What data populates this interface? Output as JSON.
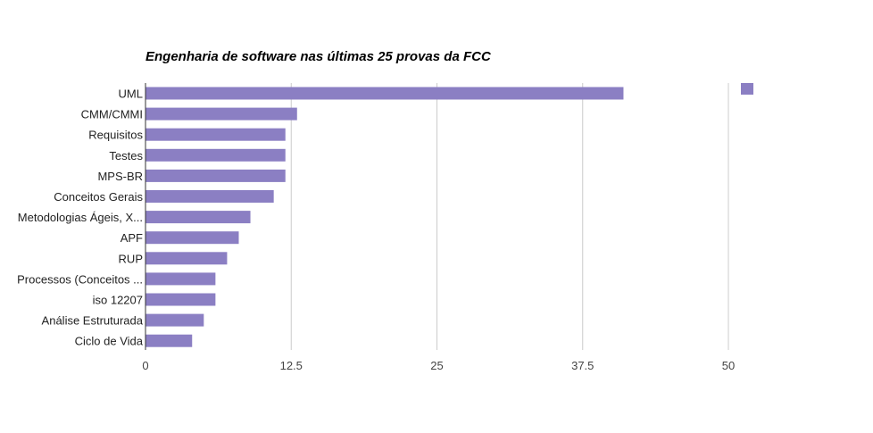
{
  "chart_data": {
    "type": "bar",
    "orientation": "horizontal",
    "title": "Engenharia de software nas últimas 25 provas da FCC",
    "categories": [
      "UML",
      "CMM/CMMI",
      "Requisitos",
      "Testes",
      "MPS-BR",
      "Conceitos Gerais",
      "Metodologias Ágeis, X...",
      "APF",
      "RUP",
      "Processos (Conceitos ...",
      "iso 12207",
      "Análise Estruturada",
      "Ciclo de Vida"
    ],
    "values": [
      41,
      13,
      12,
      12,
      12,
      11,
      9,
      8,
      7,
      6,
      6,
      5,
      4
    ],
    "x_ticks": [
      "0",
      "12.5",
      "25",
      "37.5",
      "50"
    ],
    "xlim": [
      0,
      50
    ],
    "grid": true,
    "legend": "top-right",
    "legend_label": "",
    "colors": {
      "bar": "#8b7fc3",
      "grid": "#cccccc",
      "axis": "#333333"
    }
  }
}
